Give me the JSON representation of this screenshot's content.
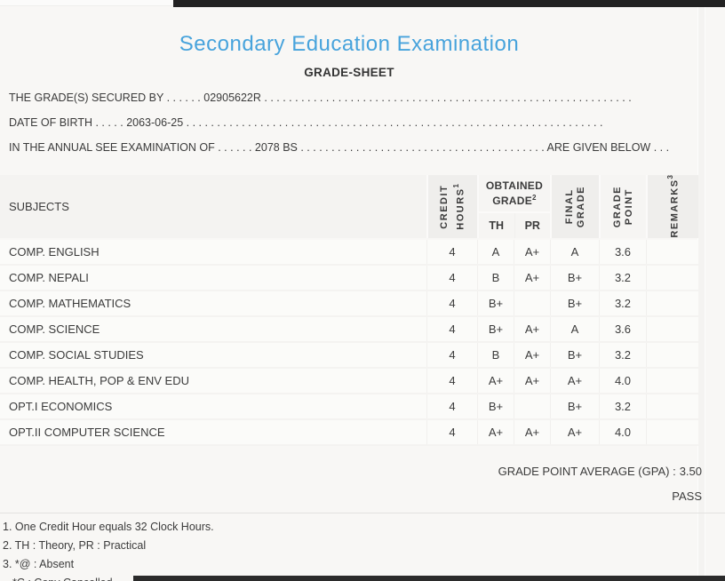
{
  "colors": {
    "accent_blue": "#47a3dc",
    "text": "#3b3b3b",
    "bar": "#2b2b2b"
  },
  "header": {
    "title": "Secondary Education Examination",
    "subtitle": "GRADE-SHEET"
  },
  "info_lines": [
    {
      "label": "THE GRADE(S) SECURED BY",
      "dots1": " . . . . . . ",
      "value": "02905622R",
      "dots2": " . . . . . . . . . . . . . . . . . . . . . . . . . . . . . . . . . . . . . . . . . . . . . . . . . . . . . . . . . . . .",
      "suffix": "",
      "dots3": ""
    },
    {
      "label": "DATE OF BIRTH",
      "dots1": " . . . . . ",
      "value": "2063-06-25",
      "dots2": " . . . . . . . . . . . . . . . . . . . . . . . . . . . . . . . . . . . . . . . . . . . . . . . . . . . . . . . . . . . . . . . . . . . .",
      "suffix": "",
      "dots3": ""
    },
    {
      "label": "IN THE ANNUAL SEE EXAMINATION OF",
      "dots1": " . . . . . . ",
      "value": "2078 BS",
      "dots2": " . . . . . . . . . . . . . . . . . . . . . . . . . . . . . . . . . . . . . . . .",
      "suffix": " ARE GIVEN BELOW",
      "dots3": " . . ."
    }
  ],
  "table": {
    "header": {
      "subjects": "SUBJECTS",
      "credit_l1": "CREDIT",
      "credit_l2": "HOURS",
      "credit_sup": "1",
      "obtained_l1": "OBTAINED",
      "obtained_l2": "GRADE",
      "obtained_sup": "2",
      "th": "TH",
      "pr": "PR",
      "final_l1": "FINAL",
      "final_l2": "GRADE",
      "point_l1": "GRADE",
      "point_l2": "POINT",
      "remarks": "REMARKS",
      "remarks_sup": "3"
    },
    "rows": [
      {
        "subject": "COMP. ENGLISH",
        "credit": "4",
        "th": "A",
        "pr": "A+",
        "final": "A",
        "point": "3.6",
        "remarks": ""
      },
      {
        "subject": "COMP. NEPALI",
        "credit": "4",
        "th": "B",
        "pr": "A+",
        "final": "B+",
        "point": "3.2",
        "remarks": ""
      },
      {
        "subject": "COMP. MATHEMATICS",
        "credit": "4",
        "th": "B+",
        "pr": "",
        "final": "B+",
        "point": "3.2",
        "remarks": ""
      },
      {
        "subject": "COMP. SCIENCE",
        "credit": "4",
        "th": "B+",
        "pr": "A+",
        "final": "A",
        "point": "3.6",
        "remarks": ""
      },
      {
        "subject": "COMP. SOCIAL STUDIES",
        "credit": "4",
        "th": "B",
        "pr": "A+",
        "final": "B+",
        "point": "3.2",
        "remarks": ""
      },
      {
        "subject": "COMP. HEALTH, POP & ENV EDU",
        "credit": "4",
        "th": "A+",
        "pr": "A+",
        "final": "A+",
        "point": "4.0",
        "remarks": ""
      },
      {
        "subject": "OPT.I ECONOMICS",
        "credit": "4",
        "th": "B+",
        "pr": "",
        "final": "B+",
        "point": "3.2",
        "remarks": ""
      },
      {
        "subject": "OPT.II COMPUTER SCIENCE",
        "credit": "4",
        "th": "A+",
        "pr": "A+",
        "final": "A+",
        "point": "4.0",
        "remarks": ""
      }
    ]
  },
  "summary": {
    "gpa_label": "GRADE POINT AVERAGE (GPA) :",
    "gpa_value": "3.50",
    "result": "PASS"
  },
  "footnotes": [
    {
      "text": "1. One Credit Hour equals 32 Clock Hours."
    },
    {
      "text": "2. TH : Theory, PR : Practical"
    },
    {
      "text": "3. *@ : Absent"
    },
    {
      "text": "*C : Copy Cancelled"
    }
  ]
}
